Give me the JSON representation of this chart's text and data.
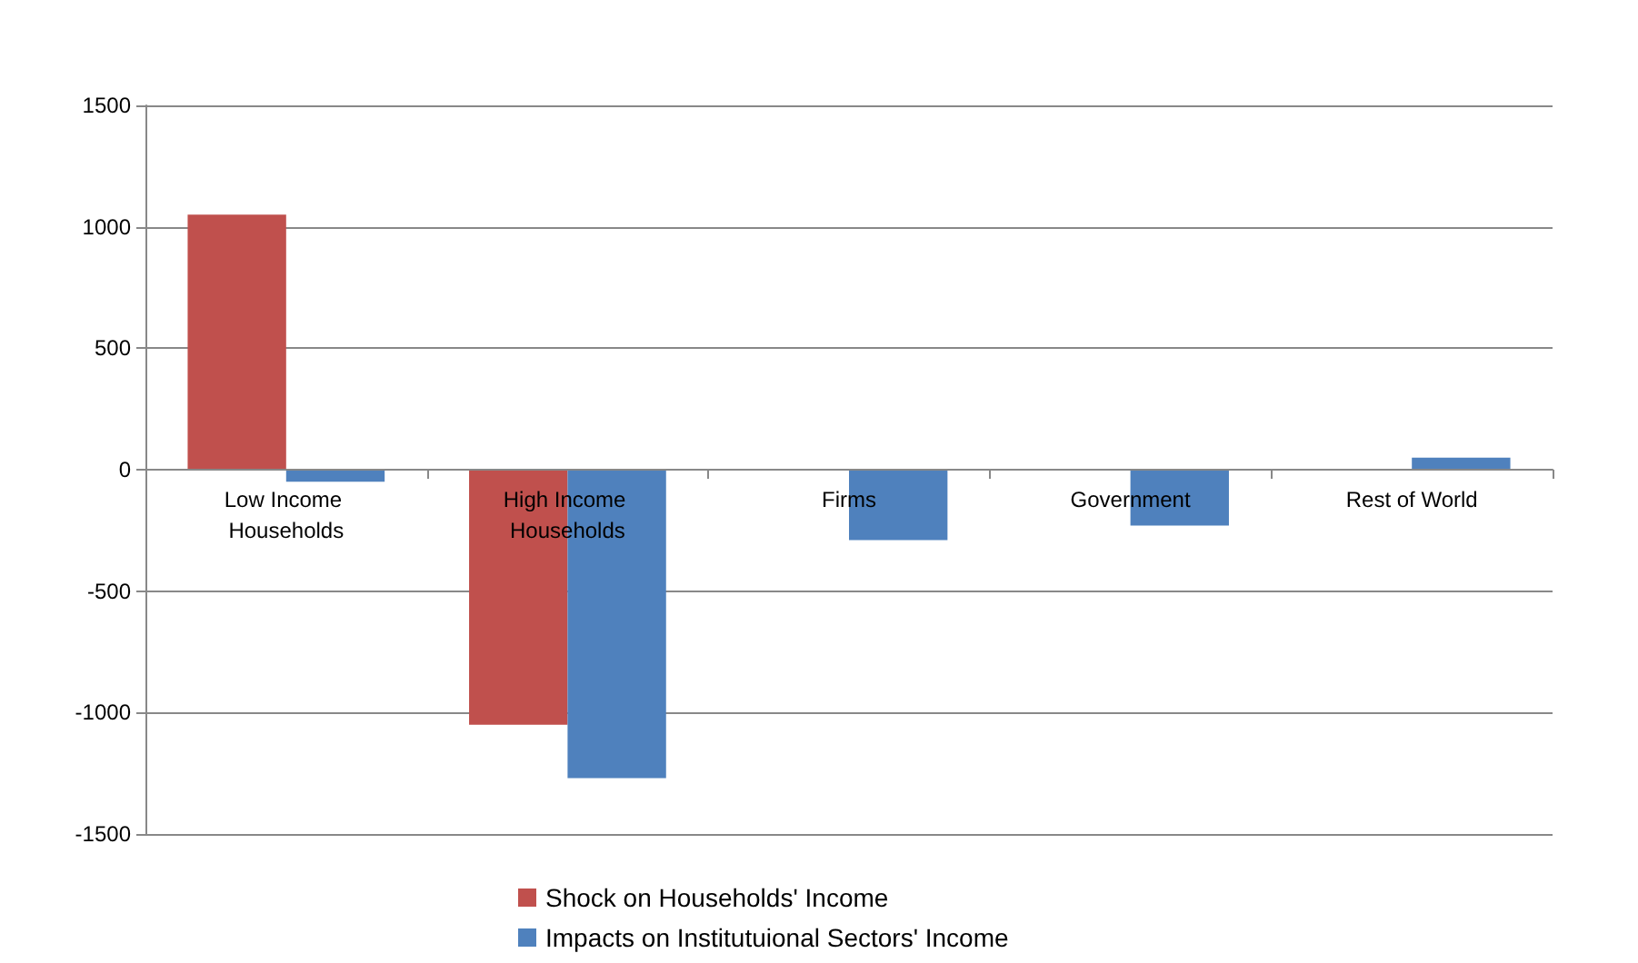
{
  "chart_data": {
    "type": "bar",
    "categories": [
      "Low Income Households",
      "High Income Households",
      "Firms",
      "Government",
      "Rest of World"
    ],
    "series": [
      {
        "name": "Shock on Households' Income",
        "color": "#c0504d",
        "values": [
          1050,
          -1050,
          null,
          null,
          null
        ]
      },
      {
        "name": "Impacts on Institutuional Sectors' Income",
        "color": "#4f81bd",
        "values": [
          -50,
          -1270,
          -290,
          -230,
          50
        ]
      }
    ],
    "ylim": [
      -1500,
      1500
    ],
    "yticks": [
      -1500,
      -1000,
      -500,
      0,
      500,
      1000,
      1500
    ],
    "grid": "y",
    "legend": "bottom"
  }
}
